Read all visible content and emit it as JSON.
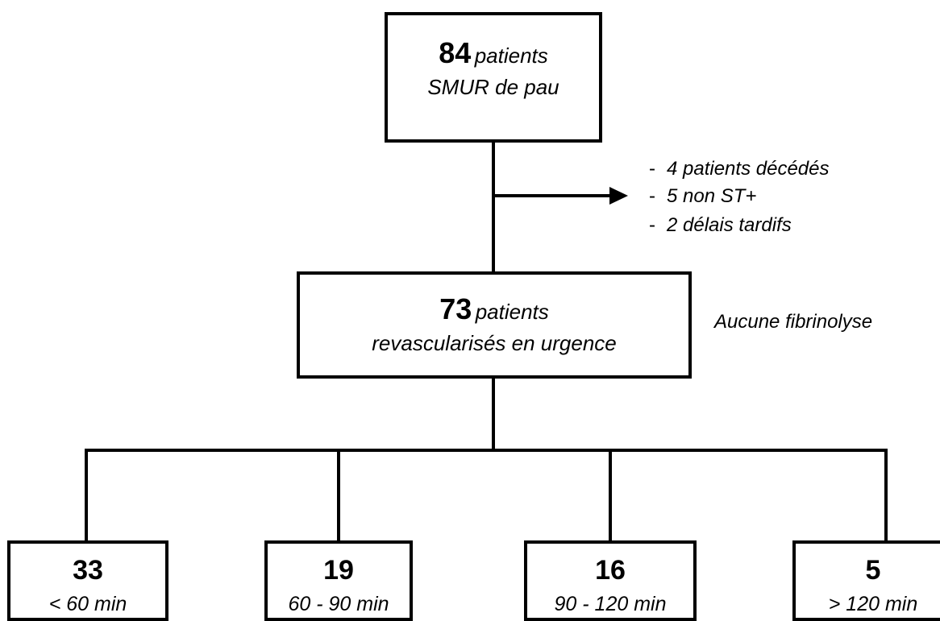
{
  "top": {
    "count": "84",
    "label": "patients",
    "subtitle": "SMUR de pau"
  },
  "exclusions": [
    {
      "dash": "-",
      "text": "4 patients décédés"
    },
    {
      "dash": "-",
      "text": "5 non ST+"
    },
    {
      "dash": "-",
      "text": "2 délais tardifs"
    }
  ],
  "middle": {
    "count": "73",
    "label": "patients",
    "subtitle": "revascularisés en urgence"
  },
  "side_note": "Aucune fibrinolyse",
  "branches": [
    {
      "count": "33",
      "label": "< 60 min"
    },
    {
      "count": "19",
      "label": "60 - 90 min"
    },
    {
      "count": "16",
      "label": "90 - 120 min"
    },
    {
      "count": "5",
      "label": "> 120 min"
    }
  ]
}
